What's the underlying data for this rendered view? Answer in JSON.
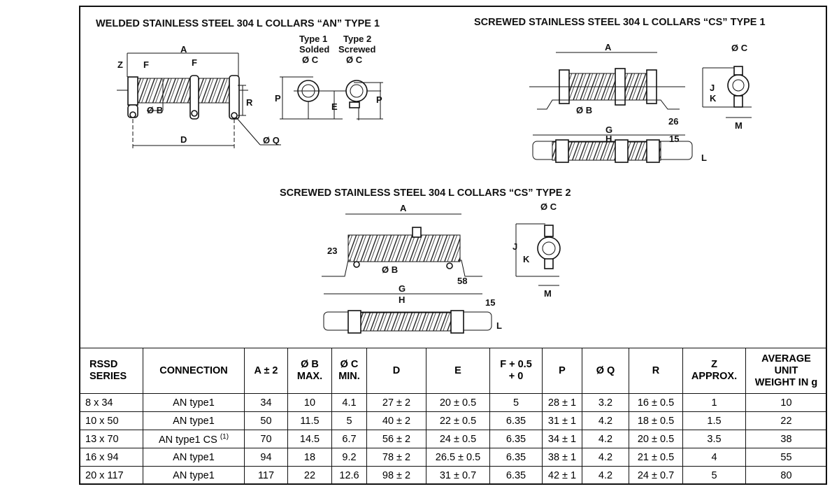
{
  "drawings": {
    "an_type1": {
      "title": "WELDED STAINLESS STEEL 304 L COLLARS “AN” TYPE 1",
      "type1_label": "Type 1",
      "type1_sub": "Solded",
      "type2_label": "Type 2",
      "type2_sub": "Screwed",
      "dims": {
        "A": "A",
        "Z": "Z",
        "F": "F",
        "B": "Ø B",
        "R": "R",
        "D": "D",
        "Q": "Ø Q",
        "C": "Ø C",
        "P": "P",
        "E": "E"
      }
    },
    "cs_type1": {
      "title": "SCREWED STAINLESS STEEL 304 L COLLARS “CS” TYPE 1",
      "dims": {
        "A": "A",
        "B": "Ø B",
        "d26": "26",
        "G": "G",
        "H": "H",
        "d15": "15",
        "L": "L",
        "C": "Ø C",
        "J": "J",
        "K": "K",
        "M": "M"
      }
    },
    "cs_type2": {
      "title": "SCREWED STAINLESS STEEL 304 L COLLARS “CS” TYPE 2",
      "dims": {
        "A": "A",
        "d23": "23",
        "B": "Ø B",
        "d58": "58",
        "G": "G",
        "H": "H",
        "d15": "15",
        "L": "L",
        "C": "Ø C",
        "J": "J",
        "K": "K",
        "M": "M"
      }
    }
  },
  "table": {
    "headers": [
      [
        "RSSD",
        "SERIES"
      ],
      [
        "CONNECTION"
      ],
      [
        "A ± 2"
      ],
      [
        "Ø B",
        "MAX."
      ],
      [
        "Ø C",
        "MIN."
      ],
      [
        "D"
      ],
      [
        "E"
      ],
      [
        "F + 0.5",
        "+ 0"
      ],
      [
        "P"
      ],
      [
        "Ø Q"
      ],
      [
        "R"
      ],
      [
        "Z",
        "APPROX."
      ],
      [
        "AVERAGE",
        "UNIT",
        "WEIGHT IN g"
      ]
    ],
    "rows": [
      [
        "8 x 34",
        "AN type1",
        "34",
        "10",
        "4.1",
        "27 ± 2",
        "20 ± 0.5",
        "5",
        "28 ± 1",
        "3.2",
        "16 ± 0.5",
        "1",
        "10"
      ],
      [
        "10 x 50",
        "AN type1",
        "50",
        "11.5",
        "5",
        "40 ± 2",
        "22 ± 0.5",
        "6.35",
        "31 ± 1",
        "4.2",
        "18 ± 0.5",
        "1.5",
        "22"
      ],
      [
        "13 x 70",
        "AN type1 CS",
        "70",
        "14.5",
        "6.7",
        "56 ± 2",
        "24 ± 0.5",
        "6.35",
        "34 ± 1",
        "4.2",
        "20 ± 0.5",
        "3.5",
        "38"
      ],
      [
        "16 x 94",
        "AN type1",
        "94",
        "18",
        "9.2",
        "78 ± 2",
        "26.5 ± 0.5",
        "6.35",
        "38 ± 1",
        "4.2",
        "21 ± 0.5",
        "4",
        "55"
      ],
      [
        "20 x 117",
        "AN type1",
        "117",
        "22",
        "12.6",
        "98 ± 2",
        "31 ± 0.7",
        "6.35",
        "42 ± 1",
        "4.2",
        "24 ± 0.7",
        "5",
        "80"
      ]
    ],
    "footnote_mark": "(1)"
  }
}
